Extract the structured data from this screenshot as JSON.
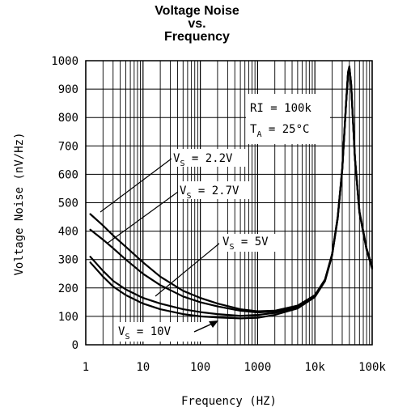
{
  "chart_data": {
    "type": "line",
    "title_lines": [
      "Voltage Noise",
      "vs.",
      "Frequency"
    ],
    "xlabel": "Frequency (HZ)",
    "ylabel": "Voltage Noise (nV/Hz)",
    "x_scale": "log",
    "xlim": [
      1,
      100000
    ],
    "ylim": [
      0,
      1000
    ],
    "x_ticks": [
      {
        "value": 1,
        "label": "1"
      },
      {
        "value": 10,
        "label": "10"
      },
      {
        "value": 100,
        "label": "100"
      },
      {
        "value": 1000,
        "label": "1000"
      },
      {
        "value": 10000,
        "label": "10k"
      },
      {
        "value": 100000,
        "label": "100k"
      }
    ],
    "y_ticks": [
      0,
      100,
      200,
      300,
      400,
      500,
      600,
      700,
      800,
      900,
      1000
    ],
    "grid": true,
    "series": [
      {
        "name": "VS = 2.2V",
        "label_main": "V",
        "label_sub": "S",
        "label_rest": " = 2.2V",
        "x": [
          1.2,
          2,
          3,
          5,
          10,
          20,
          50,
          100,
          200,
          500,
          1000,
          2000,
          5000,
          10000,
          15000,
          20000,
          25000,
          30000,
          35000,
          38000,
          40000,
          43000,
          50000,
          60000,
          80000,
          100000
        ],
        "y": [
          460,
          420,
          385,
          345,
          290,
          240,
          190,
          165,
          145,
          125,
          118,
          120,
          138,
          175,
          230,
          320,
          450,
          620,
          850,
          960,
          980,
          920,
          660,
          470,
          340,
          275
        ]
      },
      {
        "name": "VS = 2.7V",
        "label_main": "V",
        "label_sub": "S",
        "label_rest": " = 2.7V",
        "x": [
          1.2,
          2,
          3,
          5,
          10,
          20,
          50,
          100,
          200,
          500,
          1000,
          2000,
          5000,
          10000,
          15000,
          20000,
          25000,
          30000,
          35000,
          38000,
          40000,
          43000,
          50000,
          60000,
          80000,
          100000
        ],
        "y": [
          405,
          370,
          340,
          300,
          250,
          210,
          170,
          150,
          135,
          120,
          114,
          117,
          135,
          172,
          228,
          318,
          448,
          618,
          848,
          958,
          978,
          918,
          658,
          468,
          338,
          272
        ]
      },
      {
        "name": "VS = 5V",
        "label_main": "V",
        "label_sub": "S",
        "label_rest": " = 5V",
        "x": [
          1.2,
          2,
          3,
          5,
          10,
          20,
          50,
          100,
          200,
          500,
          1000,
          2000,
          5000,
          10000,
          15000,
          20000,
          25000,
          30000,
          35000,
          38000,
          40000,
          43000,
          50000,
          60000,
          80000,
          100000
        ],
        "y": [
          310,
          260,
          225,
          195,
          165,
          145,
          125,
          115,
          108,
          102,
          105,
          112,
          132,
          170,
          226,
          316,
          446,
          616,
          846,
          956,
          976,
          916,
          656,
          466,
          336,
          270
        ]
      },
      {
        "name": "VS = 10V",
        "label_main": "V",
        "label_sub": "S",
        "label_rest": " = 10V",
        "x": [
          1.2,
          2,
          3,
          5,
          10,
          20,
          50,
          100,
          200,
          500,
          1000,
          2000,
          5000,
          10000,
          15000,
          20000,
          25000,
          30000,
          35000,
          38000,
          40000,
          43000,
          50000,
          60000,
          80000,
          100000
        ],
        "y": [
          290,
          240,
          205,
          175,
          145,
          125,
          108,
          100,
          96,
          93,
          95,
          105,
          128,
          168,
          224,
          314,
          444,
          614,
          844,
          954,
          974,
          914,
          654,
          464,
          334,
          268
        ]
      }
    ],
    "conditions": {
      "line1": "RI = 100k",
      "line2_main": "T",
      "line2_sub": "A",
      "line2_rest": " = 25°C"
    }
  }
}
